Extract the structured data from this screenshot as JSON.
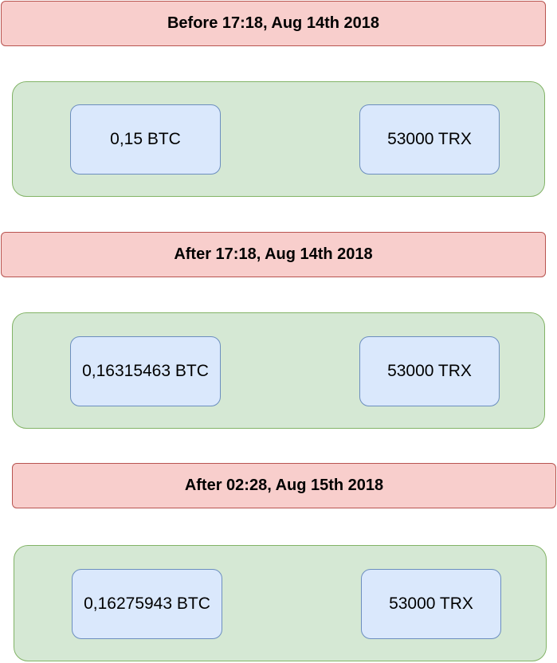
{
  "colors": {
    "header_fill": "#f8cecc",
    "header_stroke": "#b85450",
    "group_fill": "#d5e8d4",
    "group_stroke": "#82b366",
    "chip_fill": "#dae8fc",
    "chip_stroke": "#6c8ebf"
  },
  "periods": [
    {
      "title": "Before 17:18, Aug 14th 2018",
      "btc": "0,15 BTC",
      "trx": "53000 TRX"
    },
    {
      "title": "After 17:18, Aug 14th 2018",
      "btc": "0,16315463 BTC",
      "trx": "53000 TRX"
    },
    {
      "title": "After 02:28, Aug 15th 2018",
      "btc": "0,16275943 BTC",
      "trx": "53000 TRX"
    }
  ]
}
